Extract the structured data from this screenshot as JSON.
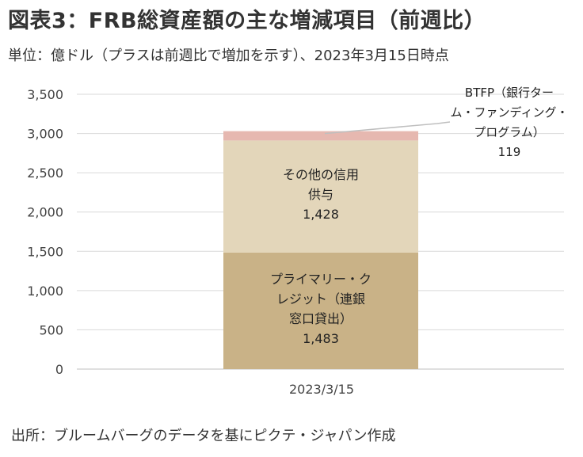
{
  "title": "図表3：FRB総資産額の主な増減項目（前週比）",
  "subtitle": "単位：億ドル（プラスは前週比で増加を示す）、2023年3月15日時点",
  "source": "出所：ブルームバーグのデータを基にピクテ・ジャパン作成",
  "chart_data": {
    "type": "bar",
    "stacked": true,
    "categories": [
      "2023/3/15"
    ],
    "series": [
      {
        "name": "プライマリー・クレジット（連銀窓口貸出）",
        "label_lines": [
          "プライマリー・ク",
          "レジット（連銀",
          "窓口貸出）",
          "1,483"
        ],
        "values": [
          1483
        ],
        "color": "#c9b287"
      },
      {
        "name": "その他の信用供与",
        "label_lines": [
          "その他の信用",
          "供与",
          "1,428"
        ],
        "values": [
          1428
        ],
        "color": "#e3d6ba"
      },
      {
        "name": "BTFP（銀行ターム・ファンディング・プログラム）",
        "label_lines": [
          "BTFP（銀行ター",
          "ム・ファンディング・",
          "プログラム）",
          "119"
        ],
        "values": [
          119
        ],
        "color": "#e6b8b0"
      }
    ],
    "yticks": [
      "0",
      "500",
      "1,000",
      "1,500",
      "2,000",
      "2,500",
      "3,000",
      "3,500"
    ],
    "ylim": [
      0,
      3500
    ],
    "grid": true,
    "legend": "none"
  }
}
